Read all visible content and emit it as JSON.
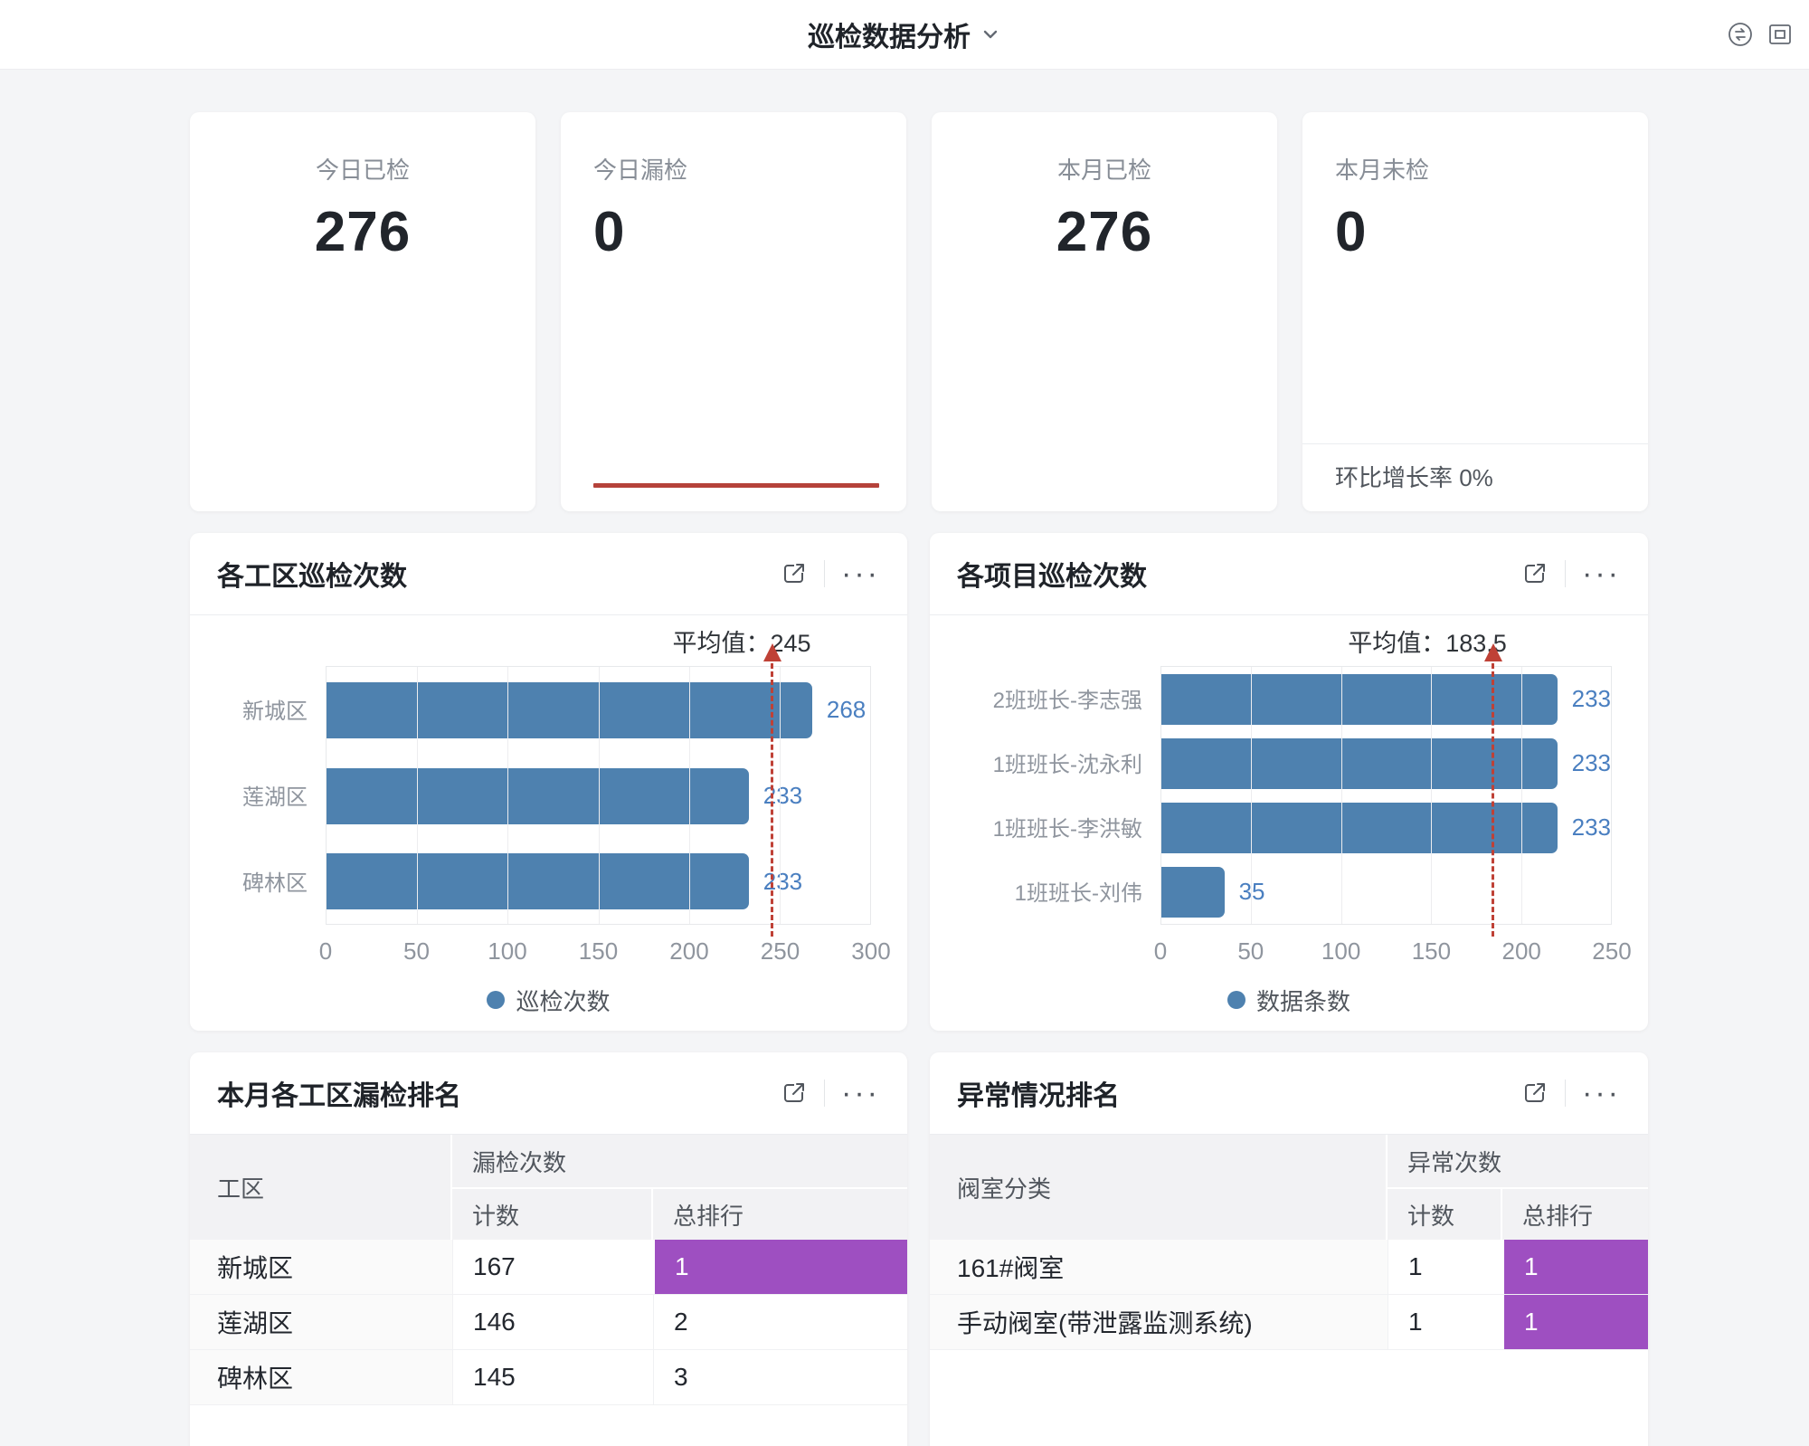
{
  "header": {
    "title": "巡检数据分析"
  },
  "stat_cards": [
    {
      "label": "今日已检",
      "value": "276"
    },
    {
      "label": "今日漏检",
      "value": "0"
    },
    {
      "label": "本月已检",
      "value": "276"
    },
    {
      "label": "本月未检",
      "value": "0",
      "footer": "环比增长率 0%"
    }
  ],
  "chart_data": [
    {
      "type": "bar",
      "orientation": "horizontal",
      "title": "各工区巡检次数",
      "categories": [
        "新城区",
        "莲湖区",
        "碑林区"
      ],
      "values": [
        268,
        233,
        233
      ],
      "avg": 245,
      "avg_label": "平均值：245",
      "xmax": 300,
      "ticks": [
        "0",
        "50",
        "100",
        "150",
        "200",
        "250",
        "300"
      ],
      "legend": "巡检次数",
      "grid": true,
      "legend_position": "bottom-center",
      "bar_color": "#4e81af"
    },
    {
      "type": "bar",
      "orientation": "horizontal",
      "title": "各项目巡检次数",
      "categories": [
        "2班班长-李志强",
        "1班班长-沈永利",
        "1班班长-李洪敏",
        "1班班长-刘伟"
      ],
      "values": [
        233,
        233,
        233,
        35
      ],
      "avg": 183.5,
      "avg_label": "平均值：183.5",
      "xmax": 250,
      "ticks": [
        "0",
        "50",
        "100",
        "150",
        "200",
        "250"
      ],
      "legend": "数据条数",
      "grid": true,
      "legend_position": "bottom-center",
      "bar_color": "#4e81af"
    }
  ],
  "tables": [
    {
      "title": "本月各工区漏检排名",
      "col1_header": "工区",
      "group_header": "漏检次数",
      "sub_headers": [
        "计数",
        "总排行"
      ],
      "rows": [
        {
          "name": "新城区",
          "count": "167",
          "rank": "1",
          "highlight": true
        },
        {
          "name": "莲湖区",
          "count": "146",
          "rank": "2",
          "highlight": false
        },
        {
          "name": "碑林区",
          "count": "145",
          "rank": "3",
          "highlight": false
        }
      ]
    },
    {
      "title": "异常情况排名",
      "col1_header": "阀室分类",
      "group_header": "异常次数",
      "sub_headers": [
        "计数",
        "总排行"
      ],
      "rows": [
        {
          "name": "161#阀室",
          "count": "1",
          "rank": "1",
          "highlight": true
        },
        {
          "name": "手动阀室(带泄露监测系统)",
          "count": "1",
          "rank": "1",
          "highlight": true
        }
      ]
    }
  ],
  "colors": {
    "bar": "#4e81af",
    "value_label": "#4a7fc0",
    "average_line": "#bf4136",
    "trend_line": "#b5423a",
    "rank_highlight": "#9e4fc1",
    "page_background": "#f4f5f7"
  }
}
